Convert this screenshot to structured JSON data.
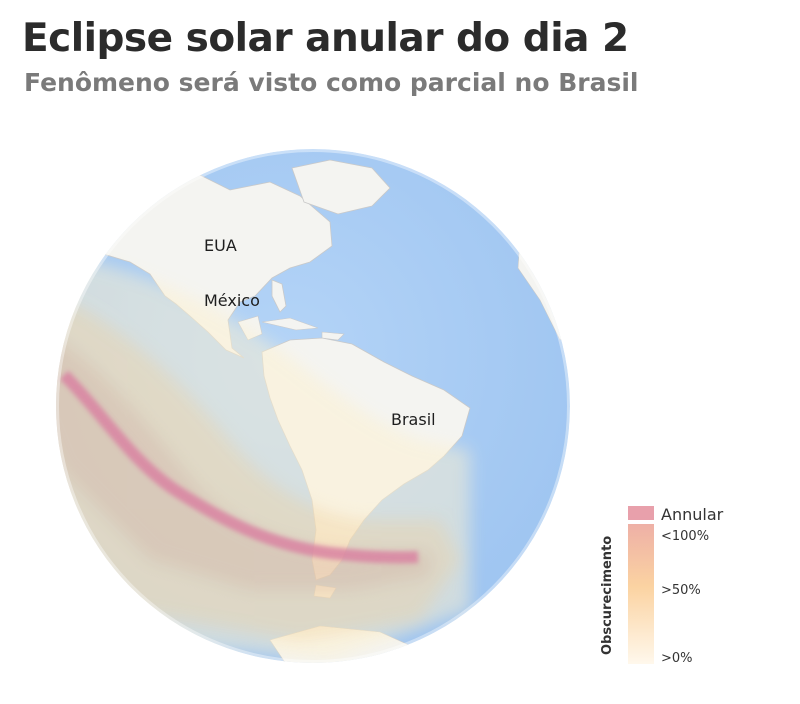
{
  "header": {
    "title": "Eclipse solar anular do dia 2",
    "subtitle": "Fenômeno será visto como parcial no Brasil"
  },
  "map": {
    "labels": {
      "usa": "EUA",
      "mexico": "México",
      "brazil": "Brasil"
    },
    "colors": {
      "ocean": "#a9cdf5",
      "land": "#f4f4f1",
      "annular_path": "#d97fa0",
      "shadow_high": "#c8a69a",
      "shadow_low": "#fdf1cf"
    }
  },
  "legend": {
    "annular_label": "Annular",
    "axis_label": "Obscurecimento",
    "tick_high": "<100%",
    "tick_mid": ">50%",
    "tick_low": ">0%",
    "colors": {
      "annular": "#e8a0ab",
      "top": "#f0b4a8",
      "mid": "#fbd9a9",
      "bottom": "#fef6e6"
    }
  }
}
